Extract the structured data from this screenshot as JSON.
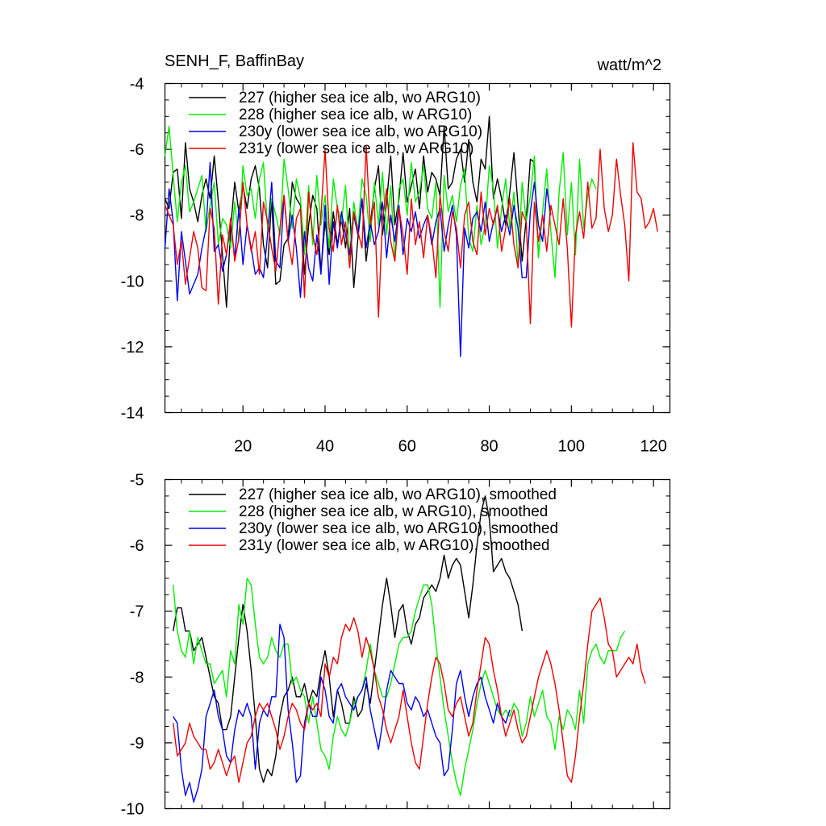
{
  "header": {
    "title": "SENH_F, BaffinBay",
    "units": "watt/m^2"
  },
  "colors": {
    "227": "#000000",
    "228": "#00ee00",
    "230y": "#0000ee",
    "231y": "#ee0000"
  },
  "chart_data": [
    {
      "type": "line",
      "title": "SENH_F, BaffinBay",
      "units": "watt/m^2",
      "xlim": [
        1,
        124
      ],
      "ylim": [
        -14,
        -4
      ],
      "yticks": [
        -14,
        -12,
        -10,
        -8,
        -6,
        -4
      ],
      "xticks": [
        20,
        40,
        60,
        80,
        100,
        120
      ],
      "tick_labels": {
        "y": [
          "-14",
          "-12",
          "-10",
          "-8",
          "-6",
          "-4"
        ],
        "x": [
          "20",
          "40",
          "60",
          "80",
          "100",
          "120"
        ]
      },
      "legend": [
        "227 (higher sea ice alb, wo ARG10)",
        "228 (higher sea ice alb, w ARG10)",
        "230y (lower sea ice alb, wo ARG10)",
        "231y (lower sea ice alb, w ARG10)"
      ],
      "legend_position": "top-left",
      "series": [
        {
          "name": "227",
          "color_key": "227",
          "x_start": 1,
          "values": [
            -7.5,
            -7.8,
            -6.7,
            -6.6,
            -8.1,
            -5.8,
            -7.2,
            -7.6,
            -8.2,
            -7.4,
            -6.9,
            -7.5,
            -6.2,
            -7.6,
            -9.2,
            -10.8,
            -8.4,
            -7.0,
            -7.9,
            -7.1,
            -7.8,
            -6.9,
            -6.5,
            -7.2,
            -8.9,
            -9.6,
            -7.5,
            -10.1,
            -10.0,
            -8.9,
            -8.7,
            -7.0,
            -7.5,
            -7.7,
            -9.8,
            -8.3,
            -7.4,
            -7.8,
            -9.7,
            -8.2,
            -9.2,
            -7.9,
            -8.9,
            -8.1,
            -9.0,
            -7.8,
            -10.2,
            -8.7,
            -7.5,
            -9.4,
            -8.3,
            -7.2,
            -6.5,
            -8.6,
            -7.6,
            -6.2,
            -8.3,
            -7.5,
            -6.1,
            -7.6,
            -7.1,
            -6.6,
            -7.8,
            -6.2,
            -7.3,
            -6.7,
            -6.9,
            -7.4,
            -5.3,
            -7.2,
            -7.0,
            -6.3,
            -6.0,
            -7.0,
            -5.7,
            -7.0,
            -7.6,
            -6.3,
            -6.6,
            -5.0,
            -7.5,
            -6.9,
            -7.5,
            -8.3,
            -7.3,
            -6.1,
            -7.7,
            -9.4,
            -8.1,
            -6.3,
            -6.4,
            -9.3
          ]
        },
        {
          "name": "228",
          "color_key": "228",
          "x_start": 1,
          "values": [
            -6.2,
            -5.3,
            -6.8,
            -8.2,
            -7.0,
            -6.5,
            -7.9,
            -7.6,
            -7.2,
            -6.8,
            -8.5,
            -7.7,
            -7.0,
            -8.9,
            -8.1,
            -8.3,
            -9.0,
            -7.6,
            -8.8,
            -6.5,
            -7.4,
            -7.2,
            -8.1,
            -6.9,
            -6.4,
            -8.4,
            -7.5,
            -8.0,
            -8.6,
            -6.3,
            -7.2,
            -8.4,
            -6.9,
            -7.5,
            -9.2,
            -7.1,
            -8.9,
            -6.8,
            -8.3,
            -7.4,
            -9.0,
            -6.9,
            -7.8,
            -8.2,
            -7.1,
            -9.3,
            -7.6,
            -8.5,
            -6.9,
            -7.4,
            -8.8,
            -7.0,
            -8.3,
            -6.7,
            -8.6,
            -7.1,
            -9.4,
            -7.2,
            -6.9,
            -8.0,
            -6.4,
            -7.6,
            -7.3,
            -6.5,
            -7.8,
            -8.1,
            -7.0,
            -10.8,
            -6.8,
            -7.9,
            -7.4,
            -8.2,
            -7.1,
            -6.6,
            -8.7,
            -9.1,
            -7.7,
            -8.9,
            -8.3,
            -6.5,
            -7.2,
            -9.0,
            -7.8,
            -6.9,
            -8.4,
            -7.3,
            -9.6,
            -7.0,
            -8.2,
            -7.4,
            -6.2,
            -9.3,
            -7.9,
            -6.6,
            -8.5,
            -9.9,
            -7.3,
            -6.1,
            -8.6,
            -7.0,
            -9.2,
            -6.3,
            -8.4,
            -7.4,
            -6.9,
            -7.2
          ]
        },
        {
          "name": "230y",
          "color_key": "230y",
          "x_start": 1,
          "values": [
            -9.0,
            -7.2,
            -8.2,
            -10.6,
            -8.5,
            -9.4,
            -10.4,
            -10.1,
            -9.8,
            -9.0,
            -8.4,
            -6.4,
            -9.1,
            -8.9,
            -9.7,
            -9.2,
            -8.2,
            -9.3,
            -7.8,
            -9.5,
            -8.3,
            -9.0,
            -9.8,
            -9.6,
            -9.9,
            -8.6,
            -7.0,
            -9.4,
            -9.6,
            -7.4,
            -8.8,
            -8.0,
            -9.0,
            -10.5,
            -8.5,
            -9.6,
            -10.0,
            -8.6,
            -9.8,
            -7.7,
            -10.1,
            -8.2,
            -9.0,
            -7.9,
            -8.6,
            -9.2,
            -8.0,
            -8.6,
            -7.5,
            -9.0,
            -8.2,
            -8.9,
            -8.5,
            -7.6,
            -9.3,
            -8.0,
            -8.8,
            -7.7,
            -9.2,
            -8.1,
            -8.5,
            -7.9,
            -8.7,
            -8.3,
            -8.0,
            -8.9,
            -8.2,
            -7.8,
            -9.1,
            -8.3,
            -7.7,
            -8.6,
            -12.3,
            -8.4,
            -9.0,
            -8.1,
            -7.9,
            -8.5,
            -7.6,
            -8.8,
            -8.2,
            -7.8,
            -8.5,
            -8.0,
            -8.6,
            -7.7,
            -8.4,
            -9.9,
            -9.9,
            -7.9,
            -7.0,
            -8.3,
            -8.8,
            -7.2,
            -8.0
          ]
        },
        {
          "name": "231y",
          "color_key": "231y",
          "x_start": 1,
          "values": [
            -7.7,
            -8.0,
            -8.3,
            -9.5,
            -8.8,
            -10.1,
            -9.3,
            -8.5,
            -9.0,
            -10.2,
            -10.3,
            -7.8,
            -8.4,
            -10.7,
            -8.6,
            -9.2,
            -8.1,
            -9.4,
            -8.7,
            -7.0,
            -8.3,
            -9.1,
            -8.5,
            -9.8,
            -7.6,
            -8.2,
            -9.0,
            -9.7,
            -8.4,
            -7.4,
            -8.8,
            -9.5,
            -8.1,
            -7.8,
            -10.5,
            -7.3,
            -8.6,
            -9.2,
            -8.0,
            -6.0,
            -8.4,
            -9.1,
            -7.7,
            -8.9,
            -8.2,
            -9.6,
            -7.9,
            -8.5,
            -9.0,
            -5.9,
            -8.3,
            -7.6,
            -11.1,
            -8.1,
            -7.2,
            -8.8,
            -9.4,
            -7.8,
            -8.6,
            -9.8,
            -7.5,
            -8.9,
            -8.2,
            -9.3,
            -8.0,
            -8.7,
            -9.9,
            -7.4,
            -8.5,
            -9.1,
            -7.9,
            -8.4,
            -9.6,
            -8.0,
            -7.6,
            -8.8,
            -9.2,
            -7.3,
            -8.6,
            -7.8,
            -8.3,
            -7.7,
            -9.1,
            -8.4,
            -7.5,
            -8.9,
            -9.6,
            -7.9,
            -8.2,
            -11.3,
            -7.6,
            -8.8,
            -8.0,
            -9.1,
            -7.7,
            -8.3,
            -8.9,
            -7.5,
            -9.0,
            -11.4,
            -8.6,
            -7.9,
            -8.7,
            -7.0,
            -8.4,
            -8.1,
            -6.0,
            -7.8,
            -8.5,
            -8.0,
            -6.3,
            -7.4,
            -8.3,
            -10.0,
            -5.8,
            -7.3,
            -7.5,
            -8.4,
            -8.2,
            -7.8,
            -8.5
          ]
        }
      ]
    },
    {
      "type": "line",
      "title": "",
      "xlim": [
        1,
        124
      ],
      "ylim": [
        -10,
        -5
      ],
      "yticks": [
        -10,
        -9,
        -8,
        -7,
        -6,
        -5
      ],
      "tick_labels": {
        "y": [
          "-10",
          "-9",
          "-8",
          "-7",
          "-6",
          "-5"
        ]
      },
      "legend": [
        "227 (higher sea ice alb, wo ARG10), smoothed",
        "228 (higher sea ice alb, w ARG10), smoothed",
        "230y (lower sea ice alb, wo ARG10), smoothed",
        "231y (lower sea ice alb, w ARG10), smoothed"
      ],
      "legend_position": "top-left",
      "series": [
        {
          "name": "227 smoothed",
          "color_key": "227",
          "x_start": 3,
          "values": [
            -7.3,
            -6.95,
            -6.95,
            -7.3,
            -7.3,
            -7.6,
            -7.5,
            -7.4,
            -7.7,
            -8.0,
            -8.3,
            -8.4,
            -8.8,
            -8.8,
            -8.6,
            -8.0,
            -7.4,
            -6.9,
            -7.3,
            -7.9,
            -8.6,
            -9.4,
            -9.6,
            -9.4,
            -9.5,
            -9.2,
            -8.6,
            -8.3,
            -8.2,
            -8.0,
            -8.3,
            -8.3,
            -8.1,
            -8.4,
            -8.2,
            -8.3,
            -7.9,
            -7.6,
            -8.0,
            -8.6,
            -8.2,
            -8.4,
            -8.7,
            -8.7,
            -8.3,
            -8.6,
            -8.5,
            -8.1,
            -8.4,
            -7.9,
            -7.4,
            -6.9,
            -6.5,
            -6.9,
            -7.4,
            -7.0,
            -6.9,
            -7.3,
            -7.5,
            -7.2,
            -7.1,
            -6.8,
            -6.7,
            -6.6,
            -6.7,
            -6.5,
            -6.15,
            -6.5,
            -6.3,
            -6.2,
            -6.3,
            -6.7,
            -7.1,
            -6.6,
            -6.0,
            -5.5,
            -5.25,
            -5.6,
            -6.4,
            -6.3,
            -6.2,
            -6.4,
            -6.5,
            -6.7,
            -6.9,
            -7.3
          ]
        },
        {
          "name": "228 smoothed",
          "color_key": "228",
          "x_start": 3,
          "values": [
            -6.6,
            -7.3,
            -7.6,
            -7.7,
            -7.3,
            -7.8,
            -7.4,
            -7.6,
            -7.8,
            -7.8,
            -8.1,
            -8.0,
            -7.9,
            -8.3,
            -7.6,
            -7.8,
            -6.9,
            -7.2,
            -6.5,
            -6.6,
            -7.2,
            -7.7,
            -7.8,
            -7.7,
            -7.4,
            -7.6,
            -7.7,
            -7.5,
            -7.5,
            -8.1,
            -8.0,
            -8.2,
            -8.3,
            -8.7,
            -8.3,
            -8.7,
            -9.1,
            -9.2,
            -9.4,
            -8.9,
            -8.6,
            -8.8,
            -8.9,
            -8.7,
            -8.4,
            -8.3,
            -8.2,
            -7.9,
            -7.5,
            -7.9,
            -8.1,
            -8.3,
            -8.3,
            -8.1,
            -7.8,
            -7.5,
            -7.4,
            -7.4,
            -7.3,
            -7.0,
            -6.8,
            -6.6,
            -6.6,
            -6.9,
            -7.5,
            -8.0,
            -8.5,
            -8.9,
            -9.3,
            -9.6,
            -9.8,
            -9.4,
            -9.1,
            -8.8,
            -8.4,
            -8.1,
            -7.9,
            -8.1,
            -8.3,
            -8.5,
            -8.6,
            -8.5,
            -8.6,
            -8.4,
            -8.5,
            -8.9,
            -8.7,
            -8.3,
            -8.6,
            -8.4,
            -8.2,
            -8.6,
            -8.7,
            -9.1,
            -8.6,
            -8.8,
            -8.5,
            -8.6,
            -8.8,
            -8.2,
            -8.7,
            -7.8,
            -7.6,
            -7.5,
            -7.7,
            -7.8,
            -7.6,
            -7.6,
            -7.6,
            -7.4,
            -7.3
          ]
        },
        {
          "name": "230y smoothed",
          "color_key": "230y",
          "x_start": 3,
          "values": [
            -8.6,
            -8.7,
            -9.4,
            -9.8,
            -9.6,
            -9.9,
            -9.7,
            -9.4,
            -8.6,
            -8.4,
            -8.2,
            -8.6,
            -8.8,
            -9.2,
            -9.3,
            -8.8,
            -8.5,
            -8.6,
            -8.4,
            -8.6,
            -9.4,
            -8.7,
            -8.5,
            -8.6,
            -8.3,
            -8.3,
            -7.2,
            -7.4,
            -8.5,
            -9.0,
            -9.6,
            -9.5,
            -8.7,
            -8.4,
            -8.6,
            -8.6,
            -8.0,
            -8.2,
            -8.6,
            -8.7,
            -8.2,
            -8.1,
            -8.3,
            -8.4,
            -8.5,
            -8.3,
            -8.2,
            -8.0,
            -8.5,
            -8.8,
            -9.1,
            -8.7,
            -8.2,
            -7.9,
            -8.0,
            -8.1,
            -8.1,
            -8.4,
            -8.5,
            -8.3,
            -8.4,
            -8.6,
            -8.5,
            -8.7,
            -8.9,
            -9.0,
            -9.5,
            -9.4,
            -8.8,
            -8.1,
            -7.9,
            -8.3,
            -8.6,
            -8.3,
            -8.1,
            -8.0,
            -8.3,
            -8.5,
            -8.7,
            -8.4,
            -8.6,
            -8.7,
            -8.5
          ]
        },
        {
          "name": "231y smoothed",
          "color_key": "231y",
          "x_start": 3,
          "values": [
            -8.7,
            -9.2,
            -9.1,
            -9.0,
            -8.7,
            -8.9,
            -9.0,
            -9.1,
            -9.1,
            -9.4,
            -9.3,
            -9.1,
            -9.3,
            -9.5,
            -9.3,
            -9.2,
            -9.6,
            -9.3,
            -9.0,
            -8.9,
            -8.6,
            -8.4,
            -8.5,
            -8.4,
            -8.6,
            -8.8,
            -9.1,
            -8.9,
            -8.6,
            -8.4,
            -8.5,
            -8.7,
            -8.8,
            -8.4,
            -8.5,
            -8.4,
            -8.6,
            -7.8,
            -8.0,
            -7.7,
            -7.8,
            -7.4,
            -7.2,
            -7.3,
            -7.1,
            -7.3,
            -7.7,
            -7.4,
            -7.6,
            -7.9,
            -8.3,
            -8.5,
            -8.8,
            -9.0,
            -8.8,
            -8.6,
            -8.2,
            -8.6,
            -9.0,
            -9.3,
            -9.4,
            -8.9,
            -8.4,
            -8.0,
            -7.7,
            -7.8,
            -8.1,
            -8.5,
            -8.6,
            -8.4,
            -8.3,
            -8.6,
            -8.9,
            -8.7,
            -8.2,
            -7.8,
            -7.4,
            -7.5,
            -7.9,
            -8.2,
            -8.6,
            -8.9,
            -8.7,
            -8.5,
            -8.8,
            -9.0,
            -8.9,
            -8.6,
            -8.3,
            -8.0,
            -7.8,
            -7.6,
            -7.8,
            -8.1,
            -8.5,
            -9.0,
            -9.5,
            -9.6,
            -9.2,
            -8.6,
            -8.1,
            -7.5,
            -7.0,
            -6.9,
            -6.8,
            -7.1,
            -7.5,
            -7.6,
            -8.0,
            -7.9,
            -7.8,
            -7.7,
            -7.8,
            -7.5,
            -7.9,
            -8.1
          ]
        }
      ]
    }
  ]
}
